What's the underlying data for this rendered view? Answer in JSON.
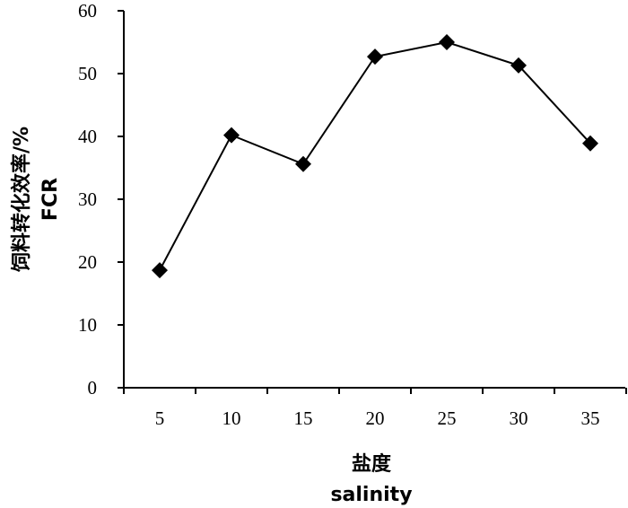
{
  "chart_data": {
    "type": "line",
    "x": [
      5,
      10,
      15,
      20,
      25,
      30,
      35
    ],
    "categories": [
      "5",
      "10",
      "15",
      "20",
      "25",
      "30",
      "35"
    ],
    "series": [
      {
        "values": [
          18.7,
          40.2,
          35.6,
          52.7,
          55.0,
          51.3,
          38.9
        ]
      }
    ],
    "ylim": [
      0,
      60
    ],
    "yticks": [
      "0",
      "10",
      "20",
      "30",
      "40",
      "50",
      "60"
    ],
    "xlabel": [
      "盐度",
      "salinity"
    ],
    "ylabel": [
      "饲料转化效率/%",
      "FCR"
    ],
    "grid": false,
    "legend": "none",
    "marker": "diamond",
    "colors": {
      "line": "#000000",
      "marker": "#000000",
      "axis": "#000000"
    }
  }
}
